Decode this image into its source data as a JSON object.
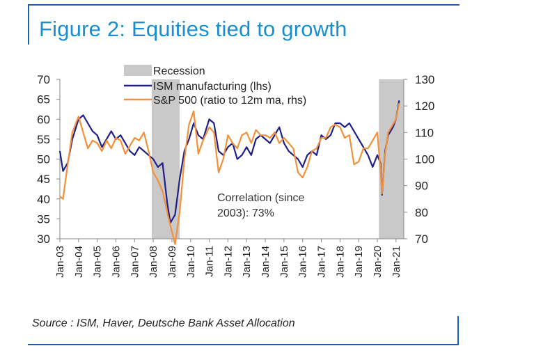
{
  "figure": {
    "title": "Figure 2: Equities tied to growth",
    "source": "Source : ISM, Haver, Deutsche Bank Asset Allocation"
  },
  "chart_data": {
    "type": "line",
    "grid": false,
    "legend_position": "top-center",
    "x_ticks": [
      "Jan-03",
      "Jan-04",
      "Jan-05",
      "Jan-06",
      "Jan-07",
      "Jan-08",
      "Jan-09",
      "Jan-10",
      "Jan-11",
      "Jan-12",
      "Jan-13",
      "Jan-14",
      "Jan-15",
      "Jan-16",
      "Jan-17",
      "Jan-18",
      "Jan-19",
      "Jan-20",
      "Jan-21"
    ],
    "x_range": [
      "2003-01",
      "2021-06"
    ],
    "y_left": {
      "range": [
        30,
        70
      ],
      "ticks": [
        30,
        35,
        40,
        45,
        50,
        55,
        60,
        65,
        70
      ]
    },
    "y_right": {
      "range": [
        70,
        130
      ],
      "ticks": [
        70,
        80,
        90,
        100,
        110,
        120,
        130
      ]
    },
    "recessions": [
      {
        "name": "Recession",
        "start": "2007-12",
        "end": "2009-06"
      },
      {
        "name": "Recession",
        "start": "2020-02",
        "end": "2021-06"
      }
    ],
    "series": [
      {
        "name": "ISM manufacturing (lhs)",
        "axis": "left",
        "color": "#1f1f8c",
        "x": [
          "2003-01",
          "2003-03",
          "2003-06",
          "2003-09",
          "2004-01",
          "2004-04",
          "2004-07",
          "2004-10",
          "2005-01",
          "2005-04",
          "2005-07",
          "2005-10",
          "2006-01",
          "2006-04",
          "2006-07",
          "2006-10",
          "2007-01",
          "2007-04",
          "2007-07",
          "2007-10",
          "2008-01",
          "2008-04",
          "2008-07",
          "2008-10",
          "2008-12",
          "2009-03",
          "2009-06",
          "2009-09",
          "2009-12",
          "2010-03",
          "2010-06",
          "2010-09",
          "2011-01",
          "2011-04",
          "2011-07",
          "2011-10",
          "2012-01",
          "2012-04",
          "2012-07",
          "2012-10",
          "2013-01",
          "2013-04",
          "2013-07",
          "2013-10",
          "2014-01",
          "2014-04",
          "2014-07",
          "2014-10",
          "2015-01",
          "2015-04",
          "2015-07",
          "2015-10",
          "2016-01",
          "2016-04",
          "2016-07",
          "2016-10",
          "2017-01",
          "2017-04",
          "2017-07",
          "2017-10",
          "2018-01",
          "2018-04",
          "2018-07",
          "2018-10",
          "2019-01",
          "2019-04",
          "2019-07",
          "2019-10",
          "2020-01",
          "2020-03",
          "2020-04",
          "2020-06",
          "2020-08",
          "2020-11",
          "2021-01",
          "2021-03"
        ],
        "values": [
          52,
          47,
          49,
          55,
          60,
          61,
          59,
          57,
          56,
          53,
          55,
          57,
          55,
          56,
          54,
          52,
          51,
          53,
          52,
          51,
          50,
          48,
          49,
          39,
          34,
          36,
          45,
          52,
          55,
          59,
          56,
          55,
          60,
          59,
          52,
          51,
          53,
          54,
          50,
          51,
          53,
          51,
          55,
          56,
          55,
          54,
          56,
          58,
          54,
          52,
          51,
          50,
          48,
          51,
          52,
          51,
          56,
          55,
          56,
          59,
          59,
          58,
          59,
          57,
          55,
          53,
          51,
          48,
          51,
          49,
          41,
          52,
          56,
          58,
          60,
          64.7
        ]
      },
      {
        "name": "S&P 500 (ratio to 12m ma, rhs)",
        "axis": "right",
        "color": "#f4903a",
        "x": [
          "2003-01",
          "2003-03",
          "2003-06",
          "2003-09",
          "2004-01",
          "2004-04",
          "2004-07",
          "2004-10",
          "2005-01",
          "2005-04",
          "2005-07",
          "2005-10",
          "2006-01",
          "2006-04",
          "2006-07",
          "2006-10",
          "2007-01",
          "2007-04",
          "2007-07",
          "2007-10",
          "2008-01",
          "2008-04",
          "2008-07",
          "2008-10",
          "2008-12",
          "2009-03",
          "2009-06",
          "2009-09",
          "2009-12",
          "2010-03",
          "2010-06",
          "2010-09",
          "2011-01",
          "2011-04",
          "2011-07",
          "2011-10",
          "2012-01",
          "2012-04",
          "2012-07",
          "2012-10",
          "2013-01",
          "2013-04",
          "2013-07",
          "2013-10",
          "2014-01",
          "2014-04",
          "2014-07",
          "2014-10",
          "2015-01",
          "2015-04",
          "2015-07",
          "2015-10",
          "2016-01",
          "2016-04",
          "2016-07",
          "2016-10",
          "2017-01",
          "2017-04",
          "2017-07",
          "2017-10",
          "2018-01",
          "2018-04",
          "2018-07",
          "2018-10",
          "2019-01",
          "2019-04",
          "2019-07",
          "2019-10",
          "2020-01",
          "2020-03",
          "2020-04",
          "2020-06",
          "2020-08",
          "2020-11",
          "2021-01",
          "2021-03"
        ],
        "values": [
          86,
          85,
          98,
          110,
          116,
          110,
          104,
          107,
          106,
          103,
          107,
          104,
          108,
          107,
          102,
          105,
          108,
          107,
          110,
          103,
          95,
          92,
          88,
          80,
          75,
          68,
          80,
          100,
          113,
          118,
          102,
          107,
          112,
          110,
          95,
          100,
          109,
          106,
          104,
          109,
          110,
          106,
          111,
          109,
          109,
          108,
          110,
          106,
          108,
          106,
          104,
          95,
          93,
          97,
          103,
          104,
          108,
          108,
          112,
          113,
          112,
          108,
          109,
          98,
          99,
          104,
          104,
          107,
          110,
          96,
          87,
          102,
          110,
          113,
          115,
          121
        ]
      }
    ],
    "annotation": [
      "Correlation (since",
      "2003): 73%"
    ]
  }
}
